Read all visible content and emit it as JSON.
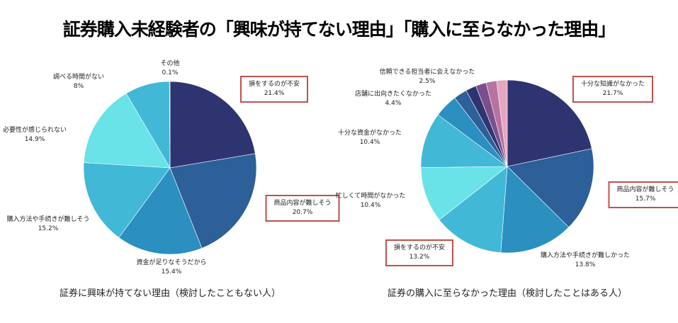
{
  "title": "証券購入未経験者の「興味が持てない理由」「購入に至らなかった理由」",
  "chart_data": [
    {
      "type": "pie",
      "title": "証券に興味が持てない理由（検討したこともない人）",
      "labels": [
        "損をするのが不安",
        "商品内容が難しそう",
        "資金が足りなそうだから",
        "購入方法や手続きが難しそう",
        "必要性が感じられない",
        "調べる時間がない",
        "その他"
      ],
      "values": [
        21.4,
        20.7,
        15.4,
        15.2,
        14.9,
        8,
        0.1
      ],
      "value_labels": [
        "21.4%",
        "20.7%",
        "15.4%",
        "15.2%",
        "14.9%",
        "8%",
        "0.1%"
      ],
      "colors": [
        "#2e3470",
        "#2d5f98",
        "#2b8fc0",
        "#41b8d6",
        "#6ae3e8",
        "#41b8d6",
        "#2b8fc0"
      ],
      "highlighted": [
        0,
        1
      ]
    },
    {
      "type": "pie",
      "title": "証券の購入に至らなかった理由（検討したことはある人）",
      "labels": [
        "十分な知識がなかった",
        "商品内容が難しそう",
        "購入方法や手続きが難しかった",
        "損をするのが不安",
        "忙しくて時間がなかった",
        "十分な資金がなかった",
        "店舗に出向きたくなかった",
        "信頼できる担当者に会えなかった"
      ],
      "values": [
        21.7,
        15.7,
        13.8,
        13.2,
        10.4,
        10.4,
        4.4,
        2.5
      ],
      "value_labels": [
        "21.7%",
        "15.7%",
        "13.8%",
        "13.2%",
        "10.4%",
        "10.4%",
        "4.4%",
        "2.5%"
      ],
      "colors": [
        "#2e3470",
        "#2d5f98",
        "#2b8fc0",
        "#41b8d6",
        "#6ae3e8",
        "#41b8d6",
        "#2b8fc0",
        "#2d5f98"
      ],
      "extra_colors": [
        "#2e3470",
        "#7b4f8e",
        "#b7739f",
        "#e7a6c0"
      ],
      "highlighted": [
        0,
        1,
        3
      ]
    }
  ]
}
